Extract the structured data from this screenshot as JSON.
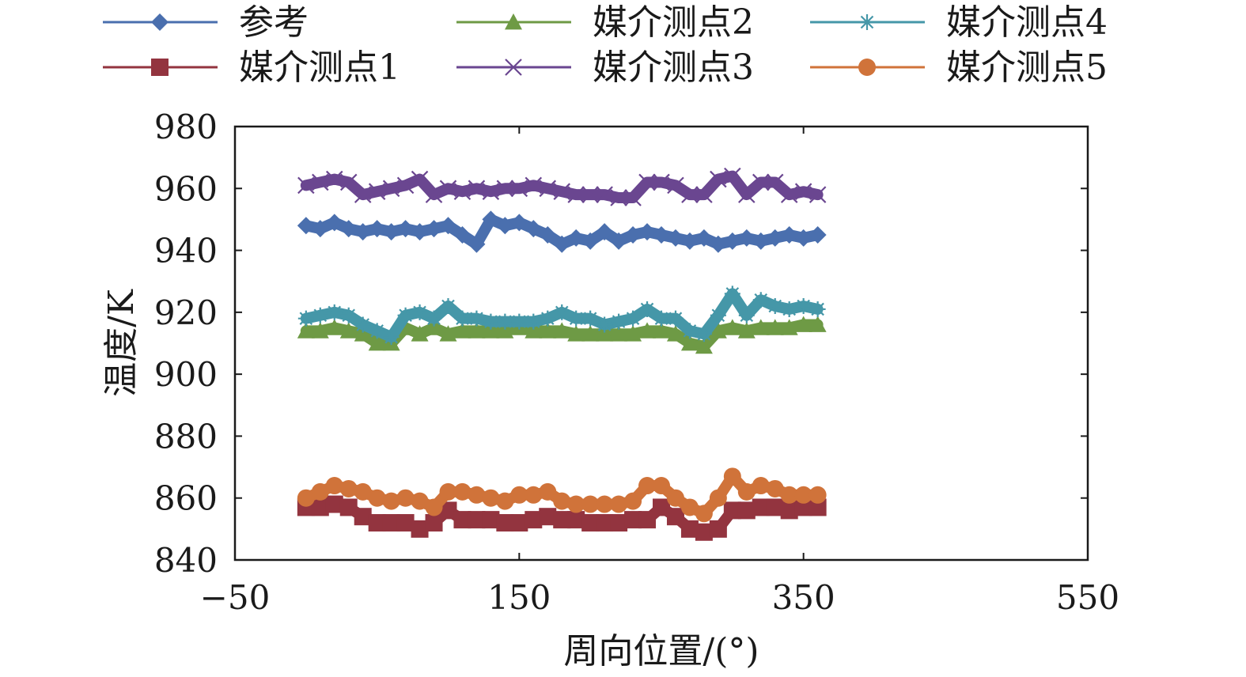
{
  "chart_data": {
    "type": "scatter",
    "title": "",
    "xlabel": "周向位置/(°)",
    "ylabel": "温度/K",
    "xlim": [
      -50,
      550
    ],
    "ylim": [
      840,
      980
    ],
    "xticks": [
      -50,
      150,
      350,
      550
    ],
    "yticks": [
      840,
      860,
      880,
      900,
      920,
      940,
      960,
      980
    ],
    "xtick_labels": [
      "−50",
      "150",
      "350",
      "550"
    ],
    "ytick_labels": [
      "840",
      "860",
      "880",
      "900",
      "920",
      "940",
      "960",
      "980"
    ],
    "grid": false,
    "legend_position": "top",
    "x": [
      0,
      10,
      20,
      30,
      40,
      50,
      60,
      70,
      80,
      90,
      100,
      110,
      120,
      130,
      140,
      150,
      160,
      170,
      180,
      190,
      200,
      210,
      220,
      230,
      240,
      250,
      260,
      270,
      280,
      290,
      300,
      310,
      320,
      330,
      340,
      350,
      360
    ],
    "series": [
      {
        "name": "参考",
        "color": "#4a6fae",
        "marker": "diamond",
        "values": [
          948,
          947,
          949,
          947,
          946,
          947,
          946,
          947,
          946,
          947,
          948,
          945,
          942,
          950,
          948,
          949,
          947,
          945,
          942,
          944,
          943,
          946,
          943,
          945,
          946,
          945,
          944,
          943,
          944,
          942,
          943,
          944,
          943,
          944,
          945,
          944,
          945
        ]
      },
      {
        "name": "媒介测点1",
        "color": "#93343f",
        "marker": "square",
        "values": [
          857,
          857,
          858,
          857,
          854,
          852,
          852,
          852,
          850,
          852,
          856,
          853,
          853,
          853,
          852,
          852,
          853,
          854,
          853,
          853,
          852,
          852,
          852,
          853,
          853,
          857,
          854,
          850,
          849,
          850,
          856,
          856,
          857,
          857,
          856,
          857,
          857
        ]
      },
      {
        "name": "媒介测点2",
        "color": "#6e9a45",
        "marker": "triangle",
        "values": [
          914,
          914,
          915,
          914,
          913,
          910,
          910,
          915,
          913,
          915,
          913,
          914,
          914,
          914,
          914,
          915,
          914,
          914,
          914,
          913,
          913,
          913,
          913,
          913,
          914,
          914,
          913,
          910,
          909,
          914,
          915,
          914,
          915,
          915,
          915,
          916,
          916
        ]
      },
      {
        "name": "媒介测点3",
        "color": "#6a4690",
        "marker": "x",
        "values": [
          961,
          962,
          963,
          962,
          958,
          959,
          960,
          961,
          963,
          958,
          960,
          959,
          960,
          959,
          960,
          960,
          961,
          960,
          959,
          958,
          958,
          958,
          957,
          957,
          962,
          962,
          961,
          958,
          958,
          963,
          964,
          958,
          962,
          962,
          958,
          959,
          958
        ]
      },
      {
        "name": "媒介测点4",
        "color": "#4597a8",
        "marker": "asterisk",
        "values": [
          918,
          919,
          920,
          919,
          916,
          914,
          912,
          919,
          920,
          918,
          922,
          918,
          918,
          917,
          917,
          917,
          917,
          918,
          920,
          918,
          918,
          916,
          917,
          918,
          921,
          918,
          918,
          914,
          913,
          919,
          926,
          919,
          924,
          922,
          921,
          922,
          921
        ]
      },
      {
        "name": "媒介测点5",
        "color": "#d0733a",
        "marker": "circle",
        "values": [
          860,
          862,
          864,
          863,
          862,
          860,
          859,
          860,
          859,
          857,
          862,
          862,
          861,
          860,
          859,
          861,
          861,
          862,
          859,
          858,
          858,
          858,
          858,
          859,
          864,
          864,
          860,
          857,
          855,
          860,
          867,
          862,
          864,
          863,
          861,
          861,
          861
        ]
      }
    ]
  }
}
